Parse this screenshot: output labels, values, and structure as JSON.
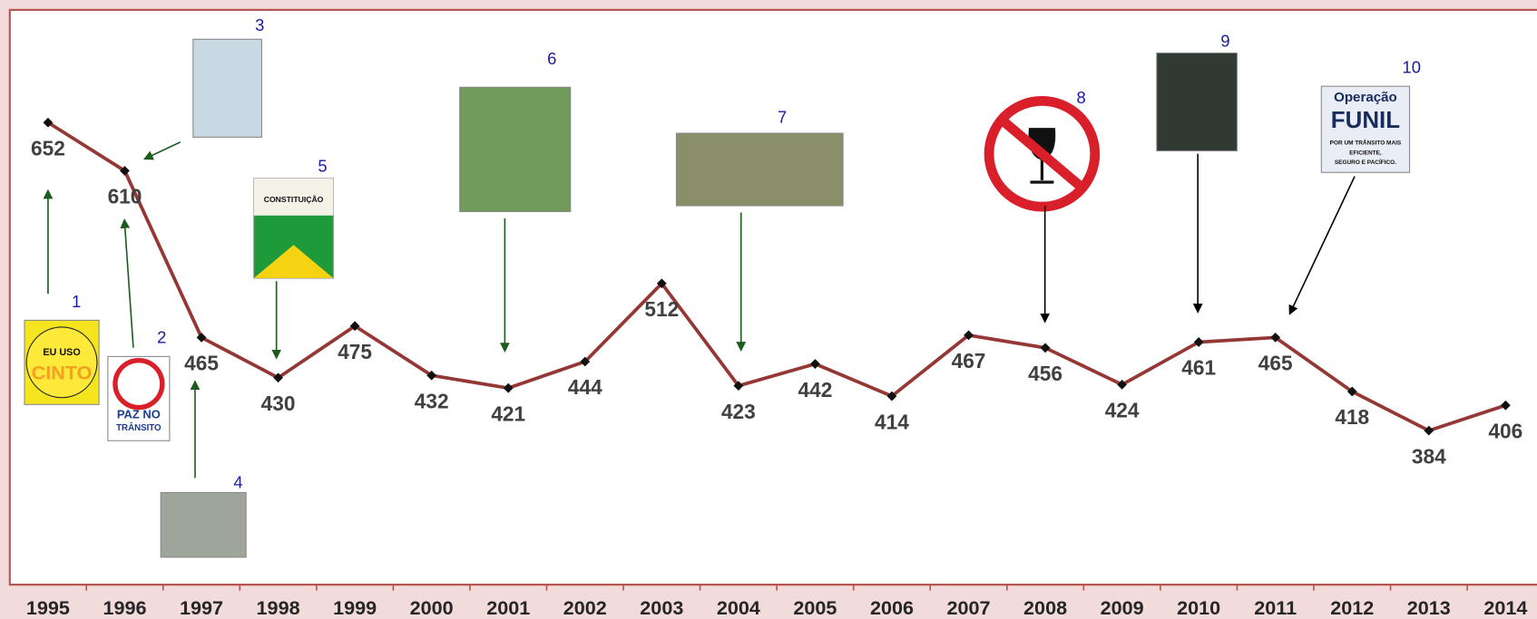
{
  "chart_data": {
    "type": "line",
    "categories": [
      "1995",
      "1996",
      "1997",
      "1998",
      "1999",
      "2000",
      "2001",
      "2002",
      "2003",
      "2004",
      "2005",
      "2006",
      "2007",
      "2008",
      "2009",
      "2010",
      "2011",
      "2012",
      "2013",
      "2014"
    ],
    "values": [
      652,
      610,
      465,
      430,
      475,
      432,
      421,
      444,
      512,
      423,
      442,
      414,
      467,
      456,
      424,
      461,
      465,
      418,
      384,
      406
    ],
    "color": "#953735",
    "ylim": [
      250,
      750
    ],
    "annotations": [
      {
        "label": "1",
        "text": [
          "EU USO",
          "CINTO"
        ]
      },
      {
        "label": "2",
        "text": [
          "PAZ NO",
          "TRÂNSITO"
        ]
      },
      {
        "label": "3"
      },
      {
        "label": "4"
      },
      {
        "label": "5",
        "text": [
          "CONSTITUIÇÃO"
        ]
      },
      {
        "label": "6"
      },
      {
        "label": "7"
      },
      {
        "label": "8"
      },
      {
        "label": "9"
      },
      {
        "label": "10",
        "text": [
          "Operação",
          "FUNIL",
          "POR UM TRÂNSITO MAIS",
          "EFICIENTE,",
          "SEGURO E PACÍFICO."
        ]
      }
    ]
  }
}
